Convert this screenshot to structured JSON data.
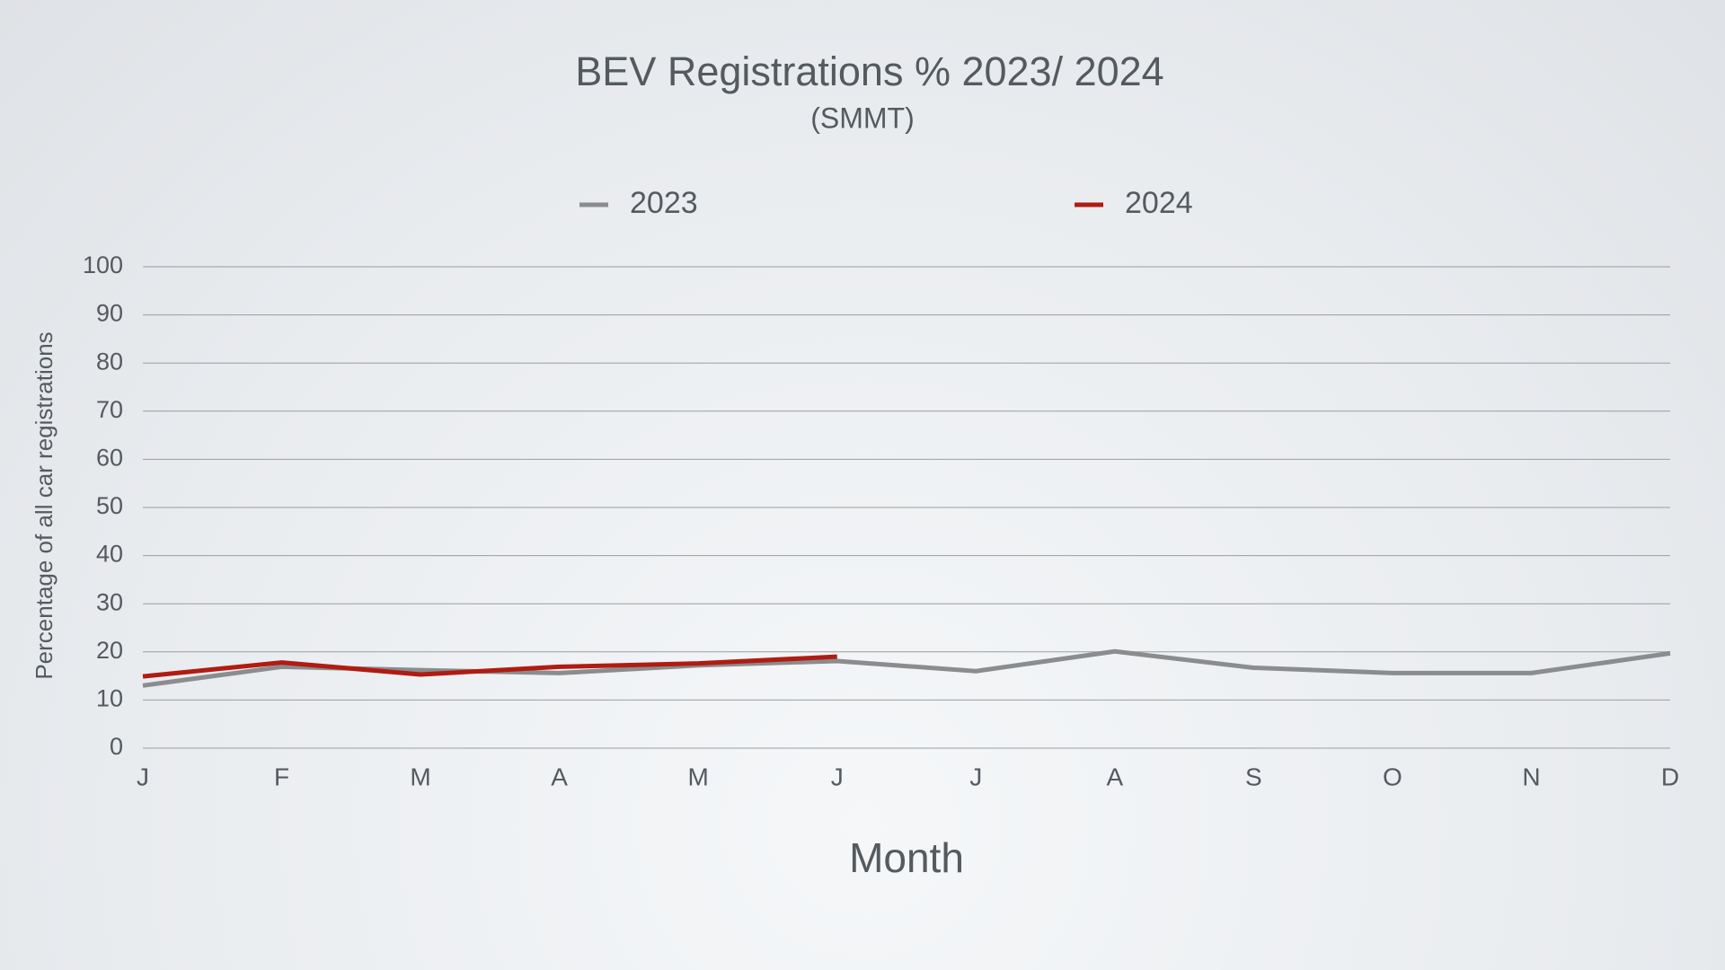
{
  "chart_data": {
    "type": "line",
    "title": "BEV Registrations % 2023/ 2024",
    "subtitle": "(SMMT)",
    "x_label": "Month",
    "y_label": "Percentage of all car registrations",
    "categories": [
      "J",
      "F",
      "M",
      "A",
      "M",
      "J",
      "J",
      "A",
      "S",
      "O",
      "N",
      "D"
    ],
    "series": [
      {
        "name": "2023",
        "color": "#8a8c8e",
        "values": [
          13.0,
          16.9,
          16.2,
          15.6,
          17.2,
          18.1,
          16.0,
          20.1,
          16.7,
          15.6,
          15.6,
          19.7
        ]
      },
      {
        "name": "2024",
        "color": "#b01c12",
        "values": [
          14.9,
          17.8,
          15.3,
          16.9,
          17.6,
          19.0,
          null,
          null,
          null,
          null,
          null,
          null
        ]
      }
    ],
    "ylim": [
      0,
      100
    ],
    "yticks": [
      0,
      10,
      20,
      30,
      40,
      50,
      60,
      70,
      80,
      90,
      100
    ],
    "grid": true,
    "legend": "top"
  }
}
